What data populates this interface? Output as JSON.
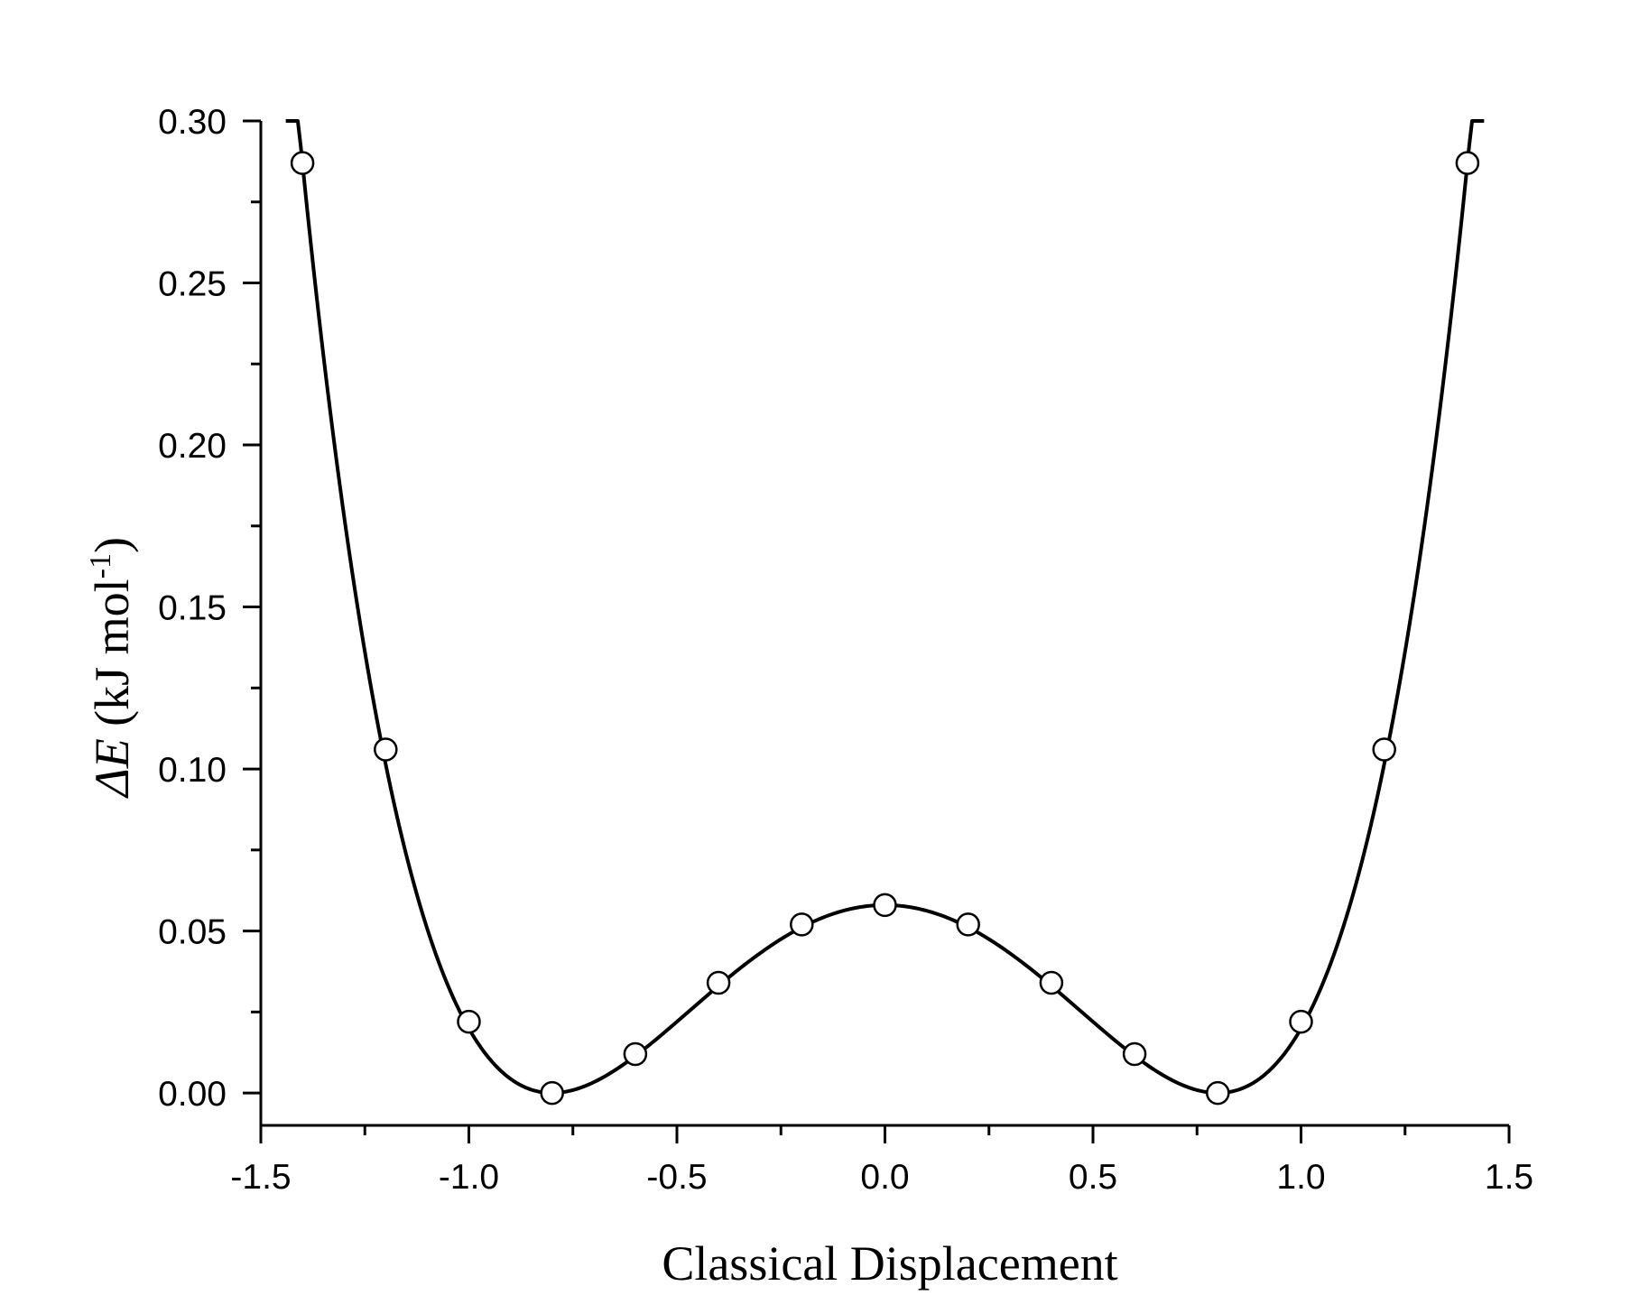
{
  "chart_data": {
    "type": "line",
    "xlabel": "Classical Displacement",
    "ylabel": {
      "symbol": "ΔE",
      "unit_open": " (kJ mol",
      "unit_exp": "-1",
      "unit_close": ")"
    },
    "xlim": [
      -1.5,
      1.5
    ],
    "ylim": [
      -0.01,
      0.3
    ],
    "x_ticks": [
      -1.5,
      -1.0,
      -0.5,
      0.0,
      0.5,
      1.0,
      1.5
    ],
    "x_tick_labels": [
      "-1.5",
      "-1.0",
      "-0.5",
      "0.0",
      "0.5",
      "1.0",
      "1.5"
    ],
    "x_minor_ticks": [
      -1.25,
      -0.75,
      -0.25,
      0.25,
      0.75,
      1.25
    ],
    "y_ticks": [
      0.0,
      0.05,
      0.1,
      0.15,
      0.2,
      0.25,
      0.3
    ],
    "y_tick_labels": [
      "0.00",
      "0.05",
      "0.10",
      "0.15",
      "0.20",
      "0.25",
      "0.30"
    ],
    "y_minor_ticks": [
      0.025,
      0.075,
      0.125,
      0.175,
      0.225,
      0.275
    ],
    "grid": false,
    "legend": "none",
    "series": [
      {
        "style": "points",
        "marker": "open-circle",
        "color": "#000000",
        "x": [
          -1.4,
          -1.2,
          -1.0,
          -0.8,
          -0.6,
          -0.4,
          -0.2,
          0.0,
          0.2,
          0.4,
          0.6,
          0.8,
          1.0,
          1.2,
          1.4
        ],
        "y": [
          0.287,
          0.106,
          0.022,
          0.0,
          0.012,
          0.034,
          0.052,
          0.058,
          0.052,
          0.034,
          0.012,
          0.0,
          0.022,
          0.106,
          0.287
        ]
      },
      {
        "style": "smooth-line",
        "color": "#000000",
        "fit": "quartic double-well",
        "x_range": [
          -1.44,
          1.44
        ]
      }
    ]
  }
}
